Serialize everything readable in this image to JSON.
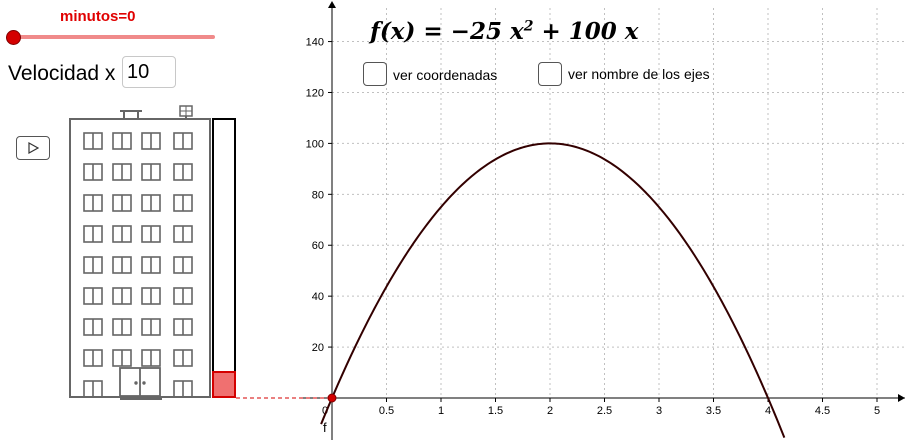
{
  "slider": {
    "label": "minutos=0",
    "value": 0
  },
  "speed": {
    "label": "Velocidad x",
    "value": "10"
  },
  "play_button": {
    "icon": "play-icon"
  },
  "elevator": {
    "level_fraction": 0.0
  },
  "formula": {
    "lhs": "f(x) = ",
    "a": "−25",
    "x": "x",
    "exp": "2",
    "b": "+ 100",
    "x2": "x"
  },
  "checkboxes": [
    {
      "label": "ver coordenadas",
      "checked": false
    },
    {
      "label": "ver nombre de los ejes",
      "checked": false
    }
  ],
  "chart_data": {
    "type": "line",
    "function": "f(x) = -25 x^2 + 100 x",
    "series": [
      {
        "name": "f",
        "x": [
          -0.1,
          0,
          0.5,
          1,
          1.5,
          2,
          2.5,
          3,
          3.5,
          4,
          4.15
        ],
        "y": [
          -10.25,
          0,
          43.75,
          75,
          93.75,
          100,
          93.75,
          75,
          43.75,
          0,
          -15.56
        ]
      }
    ],
    "x_ticks": [
      "0",
      "0.5",
      "1",
      "1.5",
      "2",
      "2.5",
      "3",
      "3.5",
      "4",
      "4.5",
      "5"
    ],
    "y_ticks": [
      "20",
      "40",
      "60",
      "80",
      "100",
      "120",
      "140"
    ],
    "xlim": [
      -0.1,
      5.3
    ],
    "ylim": [
      -10,
      155
    ],
    "grid": true,
    "point": {
      "label": "f",
      "x": 0,
      "y": 0
    },
    "colors": {
      "curve": "#330000",
      "point": "#d40000",
      "grid": "#c0c0c0"
    }
  }
}
